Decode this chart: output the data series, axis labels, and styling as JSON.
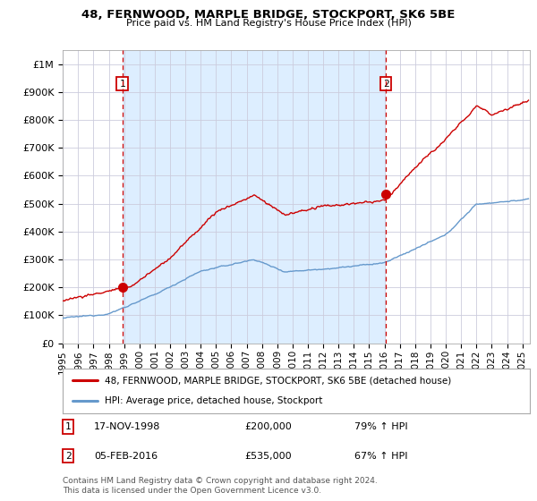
{
  "title": "48, FERNWOOD, MARPLE BRIDGE, STOCKPORT, SK6 5BE",
  "subtitle": "Price paid vs. HM Land Registry's House Price Index (HPI)",
  "ylabel_ticks": [
    "£0",
    "£100K",
    "£200K",
    "£300K",
    "£400K",
    "£500K",
    "£600K",
    "£700K",
    "£800K",
    "£900K",
    "£1M"
  ],
  "ytick_values": [
    0,
    100000,
    200000,
    300000,
    400000,
    500000,
    600000,
    700000,
    800000,
    900000,
    1000000
  ],
  "ylim": [
    0,
    1050000
  ],
  "xlim_start": 1995.0,
  "xlim_end": 2025.5,
  "xtick_years": [
    1995,
    1996,
    1997,
    1998,
    1999,
    2000,
    2001,
    2002,
    2003,
    2004,
    2005,
    2006,
    2007,
    2008,
    2009,
    2010,
    2011,
    2012,
    2013,
    2014,
    2015,
    2016,
    2017,
    2018,
    2019,
    2020,
    2021,
    2022,
    2023,
    2024,
    2025
  ],
  "sale1_x": 1998.88,
  "sale1_y": 200000,
  "sale1_label": "1",
  "sale2_x": 2016.09,
  "sale2_y": 535000,
  "sale2_label": "2",
  "vline1_x": 1998.88,
  "vline2_x": 2016.09,
  "red_line_color": "#cc0000",
  "blue_line_color": "#6699cc",
  "shade_color": "#ddeeff",
  "marker_color": "#cc0000",
  "vline_color": "#cc0000",
  "legend_label_red": "48, FERNWOOD, MARPLE BRIDGE, STOCKPORT, SK6 5BE (detached house)",
  "legend_label_blue": "HPI: Average price, detached house, Stockport",
  "annotation1_date": "17-NOV-1998",
  "annotation1_price": "£200,000",
  "annotation1_hpi": "79% ↑ HPI",
  "annotation2_date": "05-FEB-2016",
  "annotation2_price": "£535,000",
  "annotation2_hpi": "67% ↑ HPI",
  "footer": "Contains HM Land Registry data © Crown copyright and database right 2024.\nThis data is licensed under the Open Government Licence v3.0.",
  "background_color": "#ffffff",
  "plot_bg_color": "#ffffff",
  "grid_color": "#ccccdd"
}
